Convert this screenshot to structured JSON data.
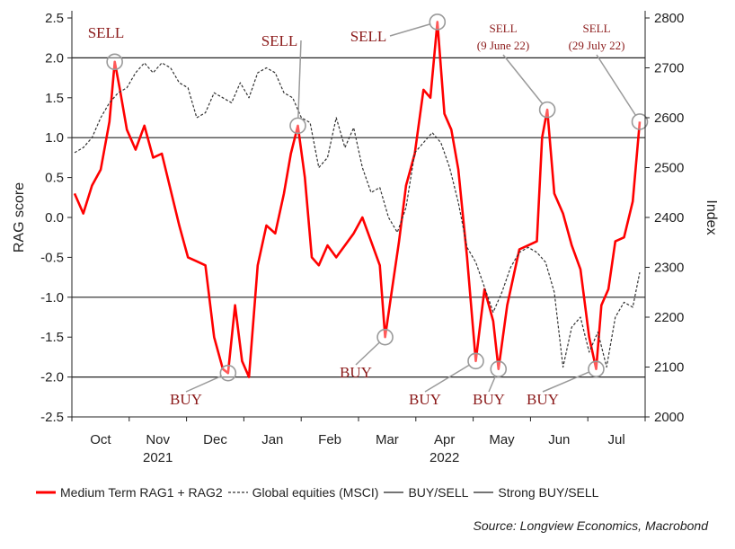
{
  "chart_data": {
    "type": "line",
    "title": "",
    "ylabel_left": "RAG score",
    "ylabel_right": "Index",
    "ylim_left": [
      -2.5,
      2.5
    ],
    "ylim_right": [
      2000,
      2800
    ],
    "yticks_left": [
      "2.5",
      "2.0",
      "1.5",
      "1.0",
      "0.5",
      "0.0",
      "-0.5",
      "-1.0",
      "-1.5",
      "-2.0",
      "-2.5"
    ],
    "yticks_right": [
      "2800",
      "2700",
      "2600",
      "2500",
      "2400",
      "2300",
      "2200",
      "2100",
      "2000"
    ],
    "month_labels": [
      "Oct",
      "Nov",
      "Dec",
      "Jan",
      "Feb",
      "Mar",
      "Apr",
      "May",
      "Jun",
      "Jul"
    ],
    "year_labels": [
      "2021",
      "2022"
    ],
    "reference_lines": [
      {
        "name": "BUY/SELL",
        "values": [
          1.0,
          -1.0
        ]
      },
      {
        "name": "Strong BUY/SELL",
        "values": [
          2.0,
          -2.0
        ]
      }
    ],
    "series": [
      {
        "name": "Medium Term RAG1 + RAG2",
        "color": "#ff0000",
        "axis": "left",
        "points": [
          [
            0.0,
            0.3
          ],
          [
            0.5,
            0.05
          ],
          [
            1.0,
            0.4
          ],
          [
            1.5,
            0.6
          ],
          [
            2.0,
            1.2
          ],
          [
            2.3,
            1.95
          ],
          [
            2.6,
            1.6
          ],
          [
            3.0,
            1.1
          ],
          [
            3.5,
            0.85
          ],
          [
            4.0,
            1.15
          ],
          [
            4.5,
            0.75
          ],
          [
            5.0,
            0.8
          ],
          [
            5.5,
            0.35
          ],
          [
            6.0,
            -0.1
          ],
          [
            6.5,
            -0.5
          ],
          [
            7.0,
            -0.55
          ],
          [
            7.5,
            -0.6
          ],
          [
            8.0,
            -1.5
          ],
          [
            8.5,
            -1.9
          ],
          [
            8.8,
            -1.95
          ],
          [
            9.2,
            -1.1
          ],
          [
            9.6,
            -1.8
          ],
          [
            10.0,
            -2.0
          ],
          [
            10.5,
            -0.6
          ],
          [
            11.0,
            -0.1
          ],
          [
            11.5,
            -0.2
          ],
          [
            12.0,
            0.3
          ],
          [
            12.4,
            0.8
          ],
          [
            12.8,
            1.15
          ],
          [
            13.2,
            0.5
          ],
          [
            13.6,
            -0.5
          ],
          [
            14.0,
            -0.6
          ],
          [
            14.5,
            -0.35
          ],
          [
            15.0,
            -0.5
          ],
          [
            15.5,
            -0.35
          ],
          [
            16.0,
            -0.2
          ],
          [
            16.5,
            0.0
          ],
          [
            17.0,
            -0.3
          ],
          [
            17.5,
            -0.6
          ],
          [
            17.8,
            -1.5
          ],
          [
            18.2,
            -0.9
          ],
          [
            18.6,
            -0.3
          ],
          [
            19.0,
            0.4
          ],
          [
            19.5,
            0.8
          ],
          [
            20.0,
            1.6
          ],
          [
            20.4,
            1.5
          ],
          [
            20.8,
            2.45
          ],
          [
            21.2,
            1.3
          ],
          [
            21.6,
            1.1
          ],
          [
            22.0,
            0.6
          ],
          [
            22.5,
            -0.5
          ],
          [
            23.0,
            -1.8
          ],
          [
            23.5,
            -0.9
          ],
          [
            24.0,
            -1.3
          ],
          [
            24.3,
            -1.9
          ],
          [
            24.8,
            -1.1
          ],
          [
            25.2,
            -0.7
          ],
          [
            25.5,
            -0.4
          ],
          [
            26.0,
            -0.35
          ],
          [
            26.5,
            -0.3
          ],
          [
            26.8,
            1.0
          ],
          [
            27.1,
            1.35
          ],
          [
            27.5,
            0.3
          ],
          [
            28.0,
            0.05
          ],
          [
            28.5,
            -0.35
          ],
          [
            29.0,
            -0.65
          ],
          [
            29.5,
            -1.5
          ],
          [
            29.9,
            -1.9
          ],
          [
            30.2,
            -1.1
          ],
          [
            30.6,
            -0.9
          ],
          [
            31.0,
            -0.3
          ],
          [
            31.5,
            -0.25
          ],
          [
            32.0,
            0.2
          ],
          [
            32.4,
            1.2
          ]
        ]
      },
      {
        "name": "Global equities (MSCI)",
        "color": "#333333",
        "axis": "right",
        "points": [
          [
            0.0,
            2530
          ],
          [
            0.5,
            2540
          ],
          [
            1.0,
            2560
          ],
          [
            1.5,
            2600
          ],
          [
            2.0,
            2630
          ],
          [
            2.5,
            2650
          ],
          [
            3.0,
            2660
          ],
          [
            3.5,
            2690
          ],
          [
            4.0,
            2710
          ],
          [
            4.5,
            2690
          ],
          [
            5.0,
            2710
          ],
          [
            5.5,
            2700
          ],
          [
            6.0,
            2670
          ],
          [
            6.5,
            2660
          ],
          [
            7.0,
            2600
          ],
          [
            7.5,
            2610
          ],
          [
            8.0,
            2650
          ],
          [
            8.5,
            2640
          ],
          [
            9.0,
            2630
          ],
          [
            9.5,
            2670
          ],
          [
            10.0,
            2640
          ],
          [
            10.5,
            2690
          ],
          [
            11.0,
            2700
          ],
          [
            11.5,
            2690
          ],
          [
            12.0,
            2650
          ],
          [
            12.5,
            2640
          ],
          [
            13.0,
            2600
          ],
          [
            13.5,
            2590
          ],
          [
            14.0,
            2500
          ],
          [
            14.5,
            2520
          ],
          [
            15.0,
            2600
          ],
          [
            15.5,
            2540
          ],
          [
            16.0,
            2580
          ],
          [
            16.5,
            2500
          ],
          [
            17.0,
            2450
          ],
          [
            17.5,
            2460
          ],
          [
            18.0,
            2400
          ],
          [
            18.5,
            2370
          ],
          [
            19.0,
            2420
          ],
          [
            19.5,
            2530
          ],
          [
            20.0,
            2550
          ],
          [
            20.5,
            2570
          ],
          [
            21.0,
            2550
          ],
          [
            21.5,
            2500
          ],
          [
            22.0,
            2430
          ],
          [
            22.5,
            2340
          ],
          [
            23.0,
            2310
          ],
          [
            23.5,
            2260
          ],
          [
            24.0,
            2210
          ],
          [
            24.5,
            2250
          ],
          [
            25.0,
            2300
          ],
          [
            25.5,
            2330
          ],
          [
            26.0,
            2340
          ],
          [
            26.5,
            2330
          ],
          [
            27.0,
            2310
          ],
          [
            27.5,
            2250
          ],
          [
            28.0,
            2100
          ],
          [
            28.5,
            2180
          ],
          [
            29.0,
            2200
          ],
          [
            29.5,
            2130
          ],
          [
            30.0,
            2170
          ],
          [
            30.5,
            2100
          ],
          [
            31.0,
            2200
          ],
          [
            31.5,
            2230
          ],
          [
            32.0,
            2220
          ],
          [
            32.4,
            2290
          ]
        ]
      }
    ],
    "annotations": [
      {
        "label": "SELL",
        "sublabel": "",
        "series": 0,
        "at": [
          2.3,
          1.95
        ],
        "size": "big"
      },
      {
        "label": "BUY",
        "sublabel": "",
        "series": 0,
        "at": [
          8.8,
          -1.95
        ],
        "size": "big"
      },
      {
        "label": "SELL",
        "sublabel": "",
        "series": 0,
        "at": [
          12.8,
          1.15
        ],
        "size": "big"
      },
      {
        "label": "BUY",
        "sublabel": "",
        "series": 0,
        "at": [
          17.8,
          -1.5
        ],
        "size": "big"
      },
      {
        "label": "SELL",
        "sublabel": "",
        "series": 0,
        "at": [
          20.8,
          2.45
        ],
        "size": "big"
      },
      {
        "label": "BUY",
        "sublabel": "",
        "series": 0,
        "at": [
          23.0,
          -1.8
        ],
        "size": "big"
      },
      {
        "label": "BUY",
        "sublabel": "",
        "series": 0,
        "at": [
          24.3,
          -1.9
        ],
        "size": "big"
      },
      {
        "label": "SELL",
        "sublabel": "(9 June 22)",
        "series": 0,
        "at": [
          27.1,
          1.35
        ],
        "size": "small"
      },
      {
        "label": "BUY",
        "sublabel": "",
        "series": 0,
        "at": [
          29.9,
          -1.9
        ],
        "size": "big"
      },
      {
        "label": "SELL",
        "sublabel": "(29 July 22)",
        "series": 0,
        "at": [
          32.4,
          1.2
        ],
        "size": "small"
      }
    ]
  },
  "legend": {
    "items": [
      {
        "label": "Medium Term RAG1 + RAG2",
        "style": "solid-red"
      },
      {
        "label": "Global equities (MSCI)",
        "style": "dashed"
      },
      {
        "label": "BUY/SELL",
        "style": "solid-dark"
      },
      {
        "label": "Strong BUY/SELL",
        "style": "solid-dark"
      }
    ]
  },
  "source": "Source: Longview Economics, Macrobond"
}
